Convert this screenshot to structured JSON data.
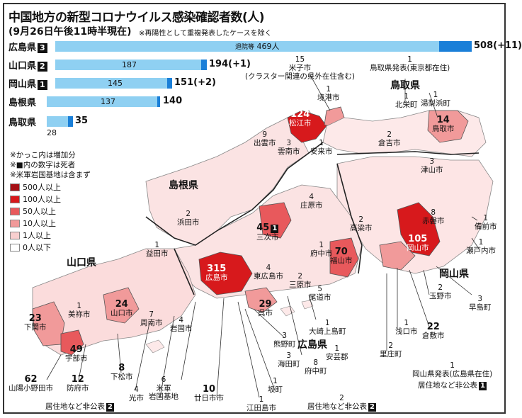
{
  "title": "中国地方の新型コロナウイルス感染確認者数(人)",
  "subtitle": "(9月26日午後11時半現在)",
  "subnote": "※再陽性として重複発表したケースを除く",
  "bars": [
    {
      "pref": "広島県",
      "deaths": "3",
      "value": 508,
      "label": "508(+11)",
      "recovered_label": "退院等",
      "recovered": 469,
      "recovered_text": "469人"
    },
    {
      "pref": "山口県",
      "deaths": "2",
      "value": 194,
      "label": "194(+1)",
      "recovered": 187,
      "recovered_text": "187"
    },
    {
      "pref": "岡山県",
      "deaths": "1",
      "value": 151,
      "label": "151(+2)",
      "recovered": 145,
      "recovered_text": "145"
    },
    {
      "pref": "島根県",
      "deaths": "",
      "value": 140,
      "label": "140",
      "recovered": 137,
      "recovered_text": "137"
    },
    {
      "pref": "鳥取県",
      "deaths": "",
      "value": 35,
      "label": "35",
      "recovered": 28,
      "recovered_text": "28"
    }
  ],
  "notes": [
    "※かっこ内は増加分",
    "※■内の数字は死者",
    "※米軍岩国基地は含まず"
  ],
  "legend": [
    {
      "label": "500人以上",
      "color": "#a50f15"
    },
    {
      "label": "100人以上",
      "color": "#d7191c"
    },
    {
      "label": "50人以上",
      "color": "#e8595c"
    },
    {
      "label": "10人以上",
      "color": "#f19a9a"
    },
    {
      "label": "1人以上",
      "color": "#f8cfcf"
    },
    {
      "label": "0人以下",
      "color": "#ffffff"
    }
  ],
  "regions": {
    "shimane": "島根県",
    "tottori": "鳥取県",
    "yamaguchi": "山口県",
    "okayama": "岡山県",
    "hiroshima": "広島県"
  },
  "map_labels": [
    {
      "id": "yonago",
      "num": "15",
      "name": "米子市",
      "sub": "(クラスター関連の県外在住含む)"
    },
    {
      "id": "tottori-pub",
      "num": "1",
      "name": "鳥取県発表(東京都在住)"
    },
    {
      "id": "sakaiminato",
      "num": "1",
      "name": "境港市"
    },
    {
      "id": "matsue",
      "num": "124",
      "name": "松江市"
    },
    {
      "id": "hokuei",
      "num": "1",
      "name": "北栄町"
    },
    {
      "id": "yurihama",
      "num": "1",
      "name": "湯梨浜町"
    },
    {
      "id": "tottori-city",
      "num": "14",
      "name": "鳥取市"
    },
    {
      "id": "izumo",
      "num": "9",
      "name": "出雲市"
    },
    {
      "id": "unnan",
      "num": "3",
      "name": "雲南市"
    },
    {
      "id": "yasugi",
      "num": "1",
      "name": "安来市"
    },
    {
      "id": "kurayoshi",
      "num": "2",
      "name": "倉吉市"
    },
    {
      "id": "tsuyama",
      "num": "3",
      "name": "津山市"
    },
    {
      "id": "shobara",
      "num": "4",
      "name": "庄原市"
    },
    {
      "id": "hamada",
      "num": "2",
      "name": "浜田市"
    },
    {
      "id": "miyoshi",
      "num": "45",
      "name": "三次市",
      "deaths": "1"
    },
    {
      "id": "takahashi",
      "num": "2",
      "name": "高梁市"
    },
    {
      "id": "akaiwa",
      "num": "8",
      "name": "赤磐市"
    },
    {
      "id": "bizen",
      "num": "1",
      "name": "備前市"
    },
    {
      "id": "masuda",
      "num": "1",
      "name": "益田市"
    },
    {
      "id": "fuchu",
      "num": "1",
      "name": "府中市"
    },
    {
      "id": "okayama-city",
      "num": "105",
      "name": "岡山市"
    },
    {
      "id": "setouchi",
      "num": "1",
      "name": "瀬戸内市"
    },
    {
      "id": "hiroshima-city",
      "num": "315",
      "name": "広島市"
    },
    {
      "id": "higashihiroshima",
      "num": "4",
      "name": "東広島市"
    },
    {
      "id": "fukuyama",
      "num": "70",
      "name": "福山市"
    },
    {
      "id": "mihara",
      "num": "2",
      "name": "三原市"
    },
    {
      "id": "onomichi",
      "num": "5",
      "name": "尾道市"
    },
    {
      "id": "tamano",
      "num": "2",
      "name": "玉野市"
    },
    {
      "id": "hayashima",
      "num": "3",
      "name": "早島町"
    },
    {
      "id": "mine",
      "num": "1",
      "name": "美祢市"
    },
    {
      "id": "yamaguchi-city",
      "num": "24",
      "name": "山口市"
    },
    {
      "id": "shunan",
      "num": "7",
      "name": "周南市"
    },
    {
      "id": "iwakuni",
      "num": "4",
      "name": "岩国市"
    },
    {
      "id": "kure",
      "num": "29",
      "name": "呉市"
    },
    {
      "id": "osakikamijima",
      "num": "1",
      "name": "大崎上島町"
    },
    {
      "id": "asakuchi",
      "num": "1",
      "name": "浅口市"
    },
    {
      "id": "kurashiki",
      "num": "22",
      "name": "倉敷市"
    },
    {
      "id": "shimonoseki",
      "num": "23",
      "name": "下関市"
    },
    {
      "id": "ube",
      "num": "49",
      "name": "宇部市"
    },
    {
      "id": "kumano",
      "num": "3",
      "name": "熊野町"
    },
    {
      "id": "kaita",
      "num": "3",
      "name": "海田町"
    },
    {
      "id": "akigun",
      "num": "1",
      "name": "安芸郡"
    },
    {
      "id": "fuchu-cho",
      "num": "8",
      "name": "府中町"
    },
    {
      "id": "satosho",
      "num": "2",
      "name": "里庄町"
    },
    {
      "id": "okayama-pub",
      "num": "1",
      "name": "岡山県発表(広島県在住)"
    },
    {
      "id": "okayama-undisclosed",
      "name": "居住地など非公表",
      "deaths": "1"
    },
    {
      "id": "sanyoonoda",
      "num": "62",
      "name": "山陽小野田市"
    },
    {
      "id": "hofu",
      "num": "12",
      "name": "防府市"
    },
    {
      "id": "kudamatsu",
      "num": "8",
      "name": "下松市"
    },
    {
      "id": "iwakuni-base",
      "num": "6",
      "name": "米軍",
      "sub": "岩国基地"
    },
    {
      "id": "hatsukaichi",
      "num": "10",
      "name": "廿日市市"
    },
    {
      "id": "saka",
      "num": "1",
      "name": "坂町"
    },
    {
      "id": "etajima",
      "num": "1",
      "name": "江田島市"
    },
    {
      "id": "hikari",
      "num": "4",
      "name": "光市"
    },
    {
      "id": "yamaguchi-undisclosed",
      "name": "居住地など非公表",
      "deaths": "2"
    },
    {
      "id": "hiroshima-undisclosed",
      "num": "2",
      "name": "居住地など非公表",
      "deaths": "2"
    }
  ]
}
